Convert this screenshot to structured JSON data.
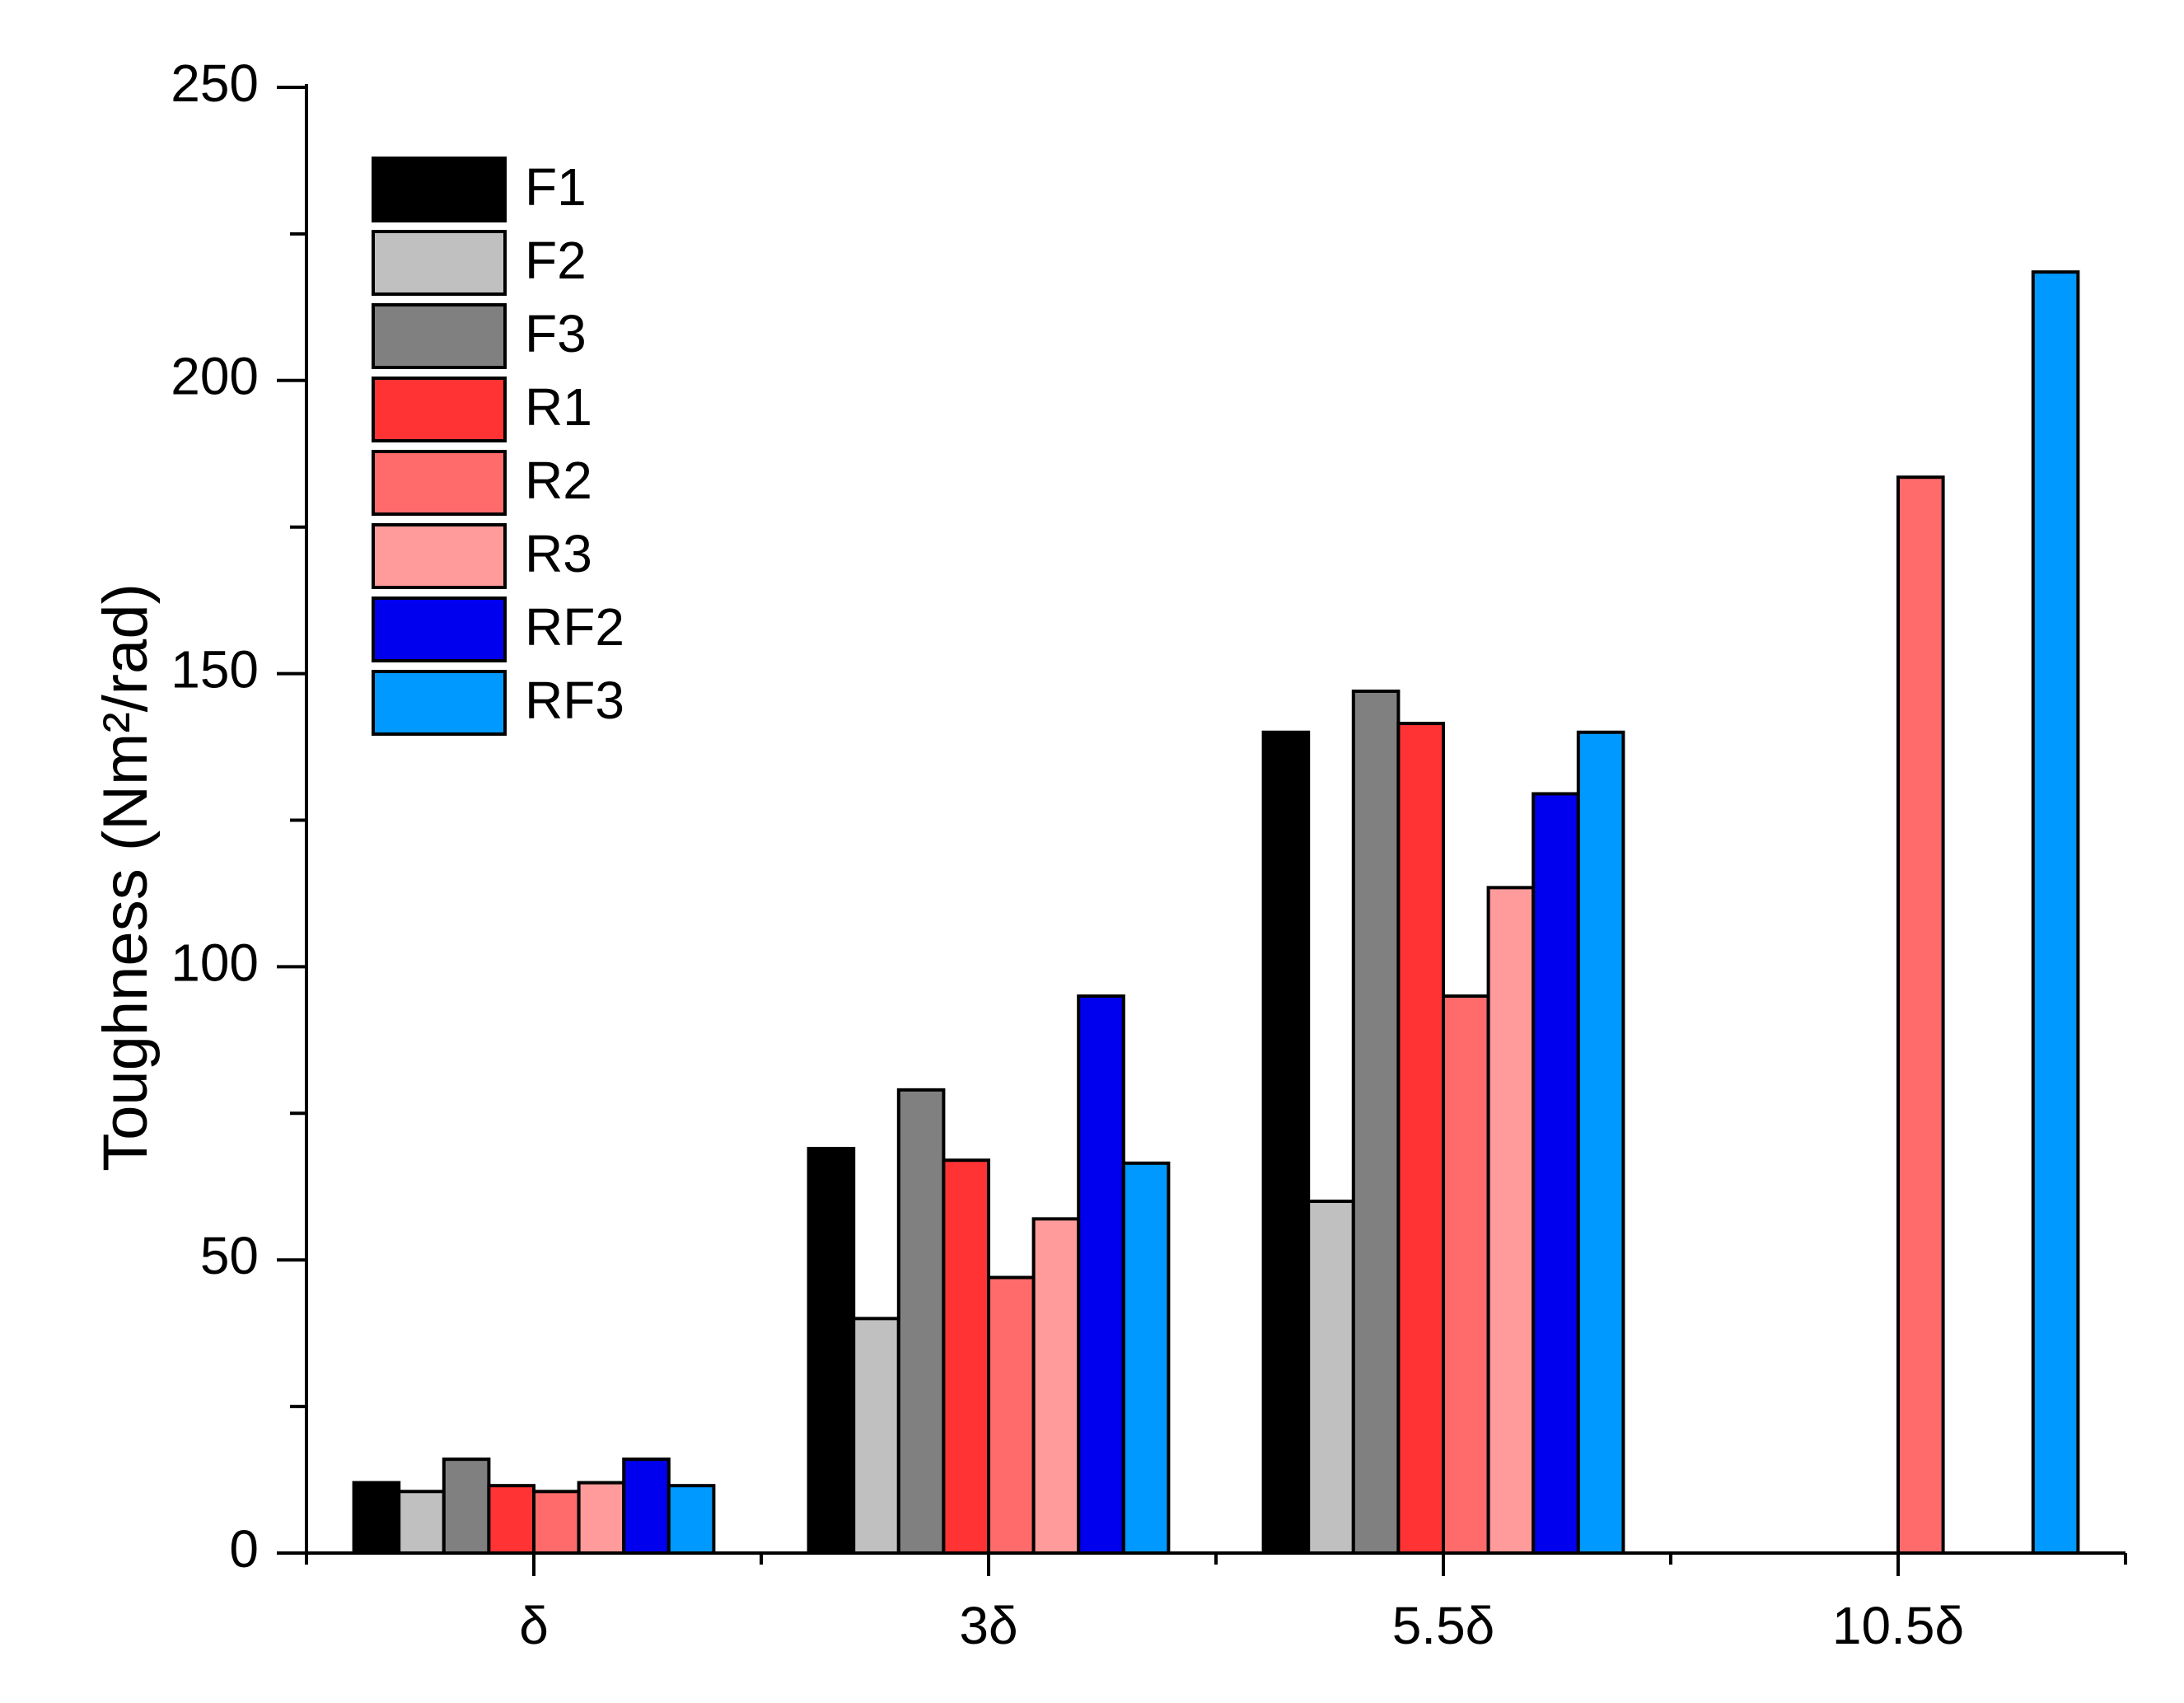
{
  "chart_data": {
    "type": "bar",
    "title": "",
    "xlabel": "",
    "ylabel": "Toughness (Nm²/rad)",
    "ylim": [
      0,
      250
    ],
    "yticks": [
      0,
      50,
      100,
      150,
      200,
      250
    ],
    "categories": [
      "δ",
      "3δ",
      "5.5δ",
      "10.5δ"
    ],
    "legend_position": "top-left",
    "grid": false,
    "series": [
      {
        "name": "F1",
        "color": "#000000",
        "values": [
          12,
          69,
          140,
          null
        ]
      },
      {
        "name": "F2",
        "color": "#c0c0c0",
        "values": [
          10.5,
          40,
          60,
          null
        ]
      },
      {
        "name": "F3",
        "color": "#808080",
        "values": [
          16,
          79,
          147,
          null
        ]
      },
      {
        "name": "R1",
        "color": "#ff3333",
        "values": [
          11.5,
          67,
          141.5,
          null
        ]
      },
      {
        "name": "R2",
        "color": "#ff6b6b",
        "values": [
          10.5,
          47,
          95,
          183.5
        ]
      },
      {
        "name": "R3",
        "color": "#ff9b9b",
        "values": [
          12,
          57,
          113.5,
          null
        ]
      },
      {
        "name": "RF2",
        "color": "#0000ee",
        "values": [
          16,
          95,
          129.5,
          null
        ]
      },
      {
        "name": "RF3",
        "color": "#0099ff",
        "values": [
          11.5,
          66.5,
          140,
          218.5
        ]
      }
    ]
  }
}
